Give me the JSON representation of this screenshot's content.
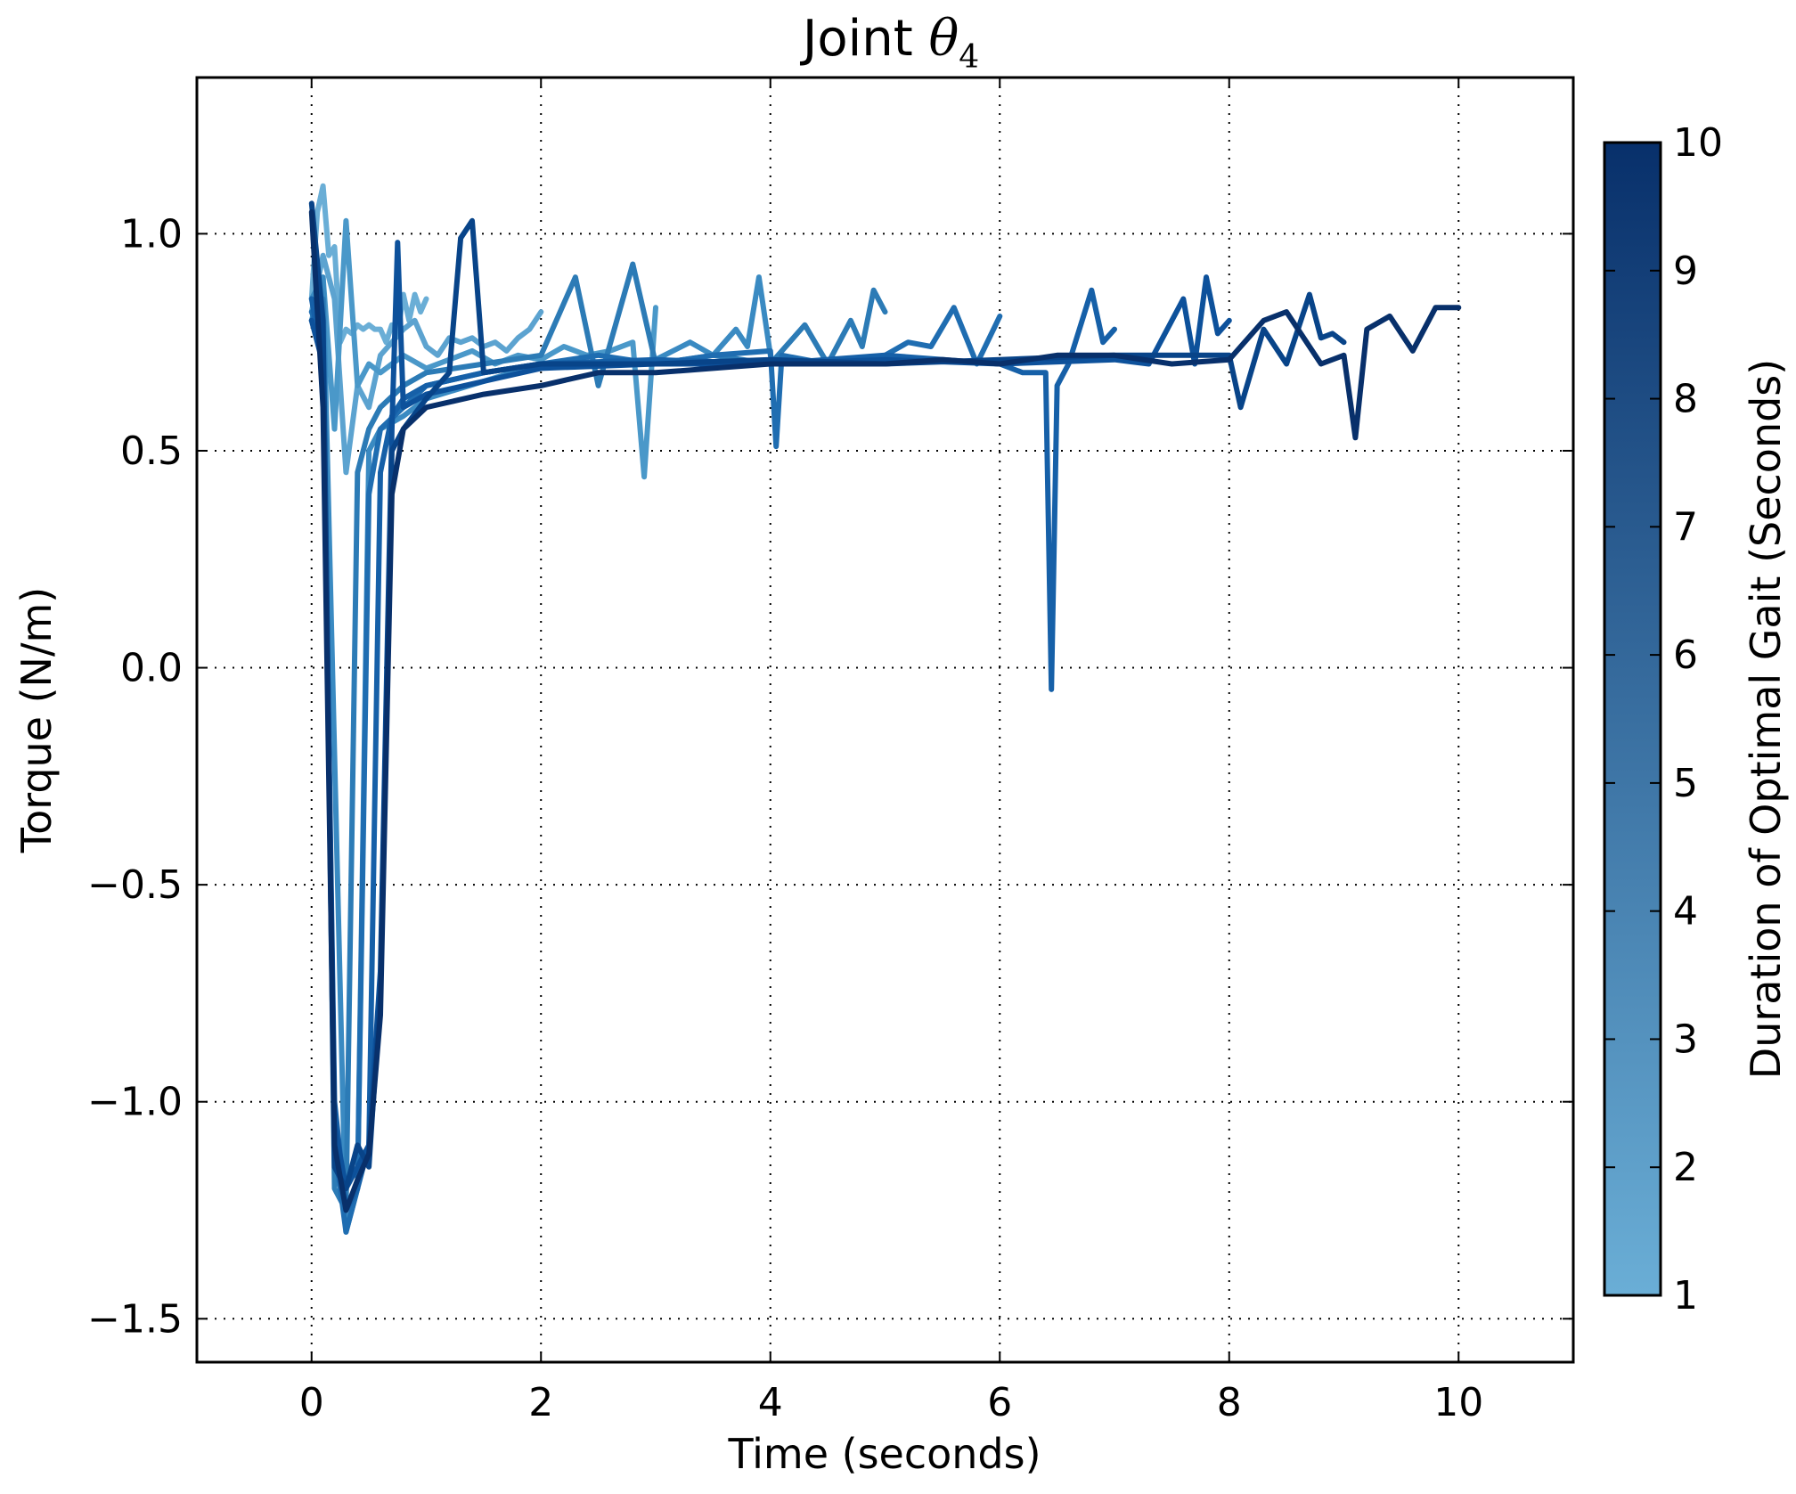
{
  "chart_data": {
    "type": "line",
    "title": "Joint ",
    "title_math": "θ",
    "title_subscript": "4",
    "xlabel": "Time (seconds)",
    "ylabel": "Torque (N/m)",
    "xlim": [
      -1,
      11
    ],
    "ylim": [
      -1.6,
      1.36
    ],
    "xticks": [
      0,
      2,
      4,
      6,
      8,
      10
    ],
    "xtick_labels": [
      "0",
      "2",
      "4",
      "6",
      "8",
      "10"
    ],
    "yticks": [
      -1.5,
      -1.0,
      -0.5,
      0.0,
      0.5,
      1.0
    ],
    "ytick_labels": [
      "−1.5",
      "−1.0",
      "−0.5",
      "0.0",
      "0.5",
      "1.0"
    ],
    "grid": true,
    "grid_style": "dotted",
    "colorbar": {
      "label": "Duration of Optimal Gait (Seconds)",
      "range": [
        1,
        10
      ],
      "ticks": [
        1,
        2,
        3,
        4,
        5,
        6,
        7,
        8,
        9,
        10
      ],
      "tick_labels": [
        "1",
        "2",
        "3",
        "4",
        "5",
        "6",
        "7",
        "8",
        "9",
        "10"
      ],
      "color_low": "#6aaed6",
      "color_high": "#08306b"
    },
    "series": [
      {
        "duration": 1,
        "color": "#6aaed6",
        "x": [
          0,
          0.05,
          0.1,
          0.15,
          0.2,
          0.25,
          0.3,
          0.35,
          0.4,
          0.45,
          0.5,
          0.55,
          0.6,
          0.65,
          0.7,
          0.75,
          0.8,
          0.85,
          0.9,
          0.95,
          1.0
        ],
        "y": [
          0.85,
          1.05,
          1.11,
          0.95,
          0.97,
          0.75,
          0.78,
          0.77,
          0.79,
          0.78,
          0.79,
          0.78,
          0.78,
          0.75,
          0.79,
          0.77,
          0.86,
          0.8,
          0.86,
          0.82,
          0.85
        ]
      },
      {
        "duration": 2,
        "color": "#5ca3d0",
        "x": [
          0,
          0.1,
          0.2,
          0.3,
          0.4,
          0.5,
          0.6,
          0.7,
          0.8,
          0.9,
          1.0,
          1.1,
          1.2,
          1.3,
          1.4,
          1.5,
          1.6,
          1.7,
          1.8,
          1.9,
          2.0
        ],
        "y": [
          0.82,
          0.95,
          0.85,
          0.45,
          0.65,
          0.6,
          0.72,
          0.75,
          0.78,
          0.8,
          0.74,
          0.72,
          0.76,
          0.75,
          0.76,
          0.74,
          0.75,
          0.73,
          0.76,
          0.78,
          0.82
        ]
      },
      {
        "duration": 3,
        "color": "#4a98c9",
        "x": [
          0,
          0.1,
          0.2,
          0.3,
          0.4,
          0.5,
          0.6,
          0.8,
          1.0,
          1.2,
          1.4,
          1.6,
          1.8,
          2.0,
          2.2,
          2.4,
          2.6,
          2.8,
          2.9,
          3.0
        ],
        "y": [
          0.8,
          0.9,
          0.55,
          1.03,
          0.65,
          0.7,
          0.68,
          0.72,
          0.69,
          0.71,
          0.73,
          0.7,
          0.72,
          0.71,
          0.74,
          0.72,
          0.73,
          0.75,
          0.44,
          0.83
        ]
      },
      {
        "duration": 4,
        "color": "#3a8ac2",
        "x": [
          0,
          0.1,
          0.2,
          0.3,
          0.4,
          0.5,
          0.6,
          0.8,
          1.0,
          1.5,
          2.0,
          2.5,
          3.0,
          3.3,
          3.5,
          3.7,
          3.8,
          3.9,
          4.0
        ],
        "y": [
          0.85,
          0.9,
          -0.2,
          -1.3,
          -1.2,
          0.5,
          0.55,
          0.58,
          0.62,
          0.66,
          0.7,
          0.7,
          0.71,
          0.75,
          0.72,
          0.78,
          0.74,
          0.9,
          0.72
        ]
      },
      {
        "duration": 5,
        "color": "#2c7bb6",
        "x": [
          0,
          0.1,
          0.2,
          0.3,
          0.4,
          0.5,
          0.6,
          0.8,
          1.0,
          1.5,
          2.0,
          2.3,
          2.5,
          2.8,
          3.0,
          3.5,
          4.0,
          4.3,
          4.5,
          4.7,
          4.8,
          4.9,
          5.0
        ],
        "y": [
          0.8,
          0.85,
          -1.2,
          -1.25,
          0.45,
          0.55,
          0.6,
          0.65,
          0.68,
          0.7,
          0.72,
          0.9,
          0.65,
          0.93,
          0.7,
          0.72,
          0.7,
          0.79,
          0.7,
          0.8,
          0.74,
          0.87,
          0.82
        ]
      },
      {
        "duration": 6,
        "color": "#1f6db1",
        "x": [
          0,
          0.1,
          0.2,
          0.3,
          0.4,
          0.5,
          0.6,
          0.8,
          1.0,
          1.5,
          2.0,
          2.5,
          3.0,
          3.5,
          4.0,
          4.05,
          4.1,
          4.5,
          5.0,
          5.2,
          5.4,
          5.6,
          5.8,
          6.0
        ],
        "y": [
          0.82,
          0.75,
          -1.1,
          -1.3,
          -1.2,
          0.4,
          0.55,
          0.6,
          0.65,
          0.68,
          0.7,
          0.72,
          0.7,
          0.72,
          0.73,
          0.51,
          0.72,
          0.7,
          0.72,
          0.75,
          0.74,
          0.83,
          0.7,
          0.81
        ]
      },
      {
        "duration": 7,
        "color": "#1660a8",
        "x": [
          0,
          0.1,
          0.2,
          0.3,
          0.4,
          0.5,
          0.6,
          0.7,
          0.8,
          1.0,
          1.5,
          2.0,
          3.0,
          4.0,
          5.0,
          6.0,
          6.2,
          6.4,
          6.45,
          6.5,
          6.6,
          6.8,
          6.9,
          7.0
        ],
        "y": [
          0.85,
          0.7,
          -1.0,
          -1.25,
          -1.2,
          -1.1,
          0.45,
          0.58,
          0.62,
          0.65,
          0.68,
          0.7,
          0.71,
          0.7,
          0.72,
          0.7,
          0.68,
          0.68,
          -0.05,
          0.65,
          0.7,
          0.87,
          0.75,
          0.78
        ]
      },
      {
        "duration": 8,
        "color": "#0d519b",
        "x": [
          0,
          0.1,
          0.2,
          0.3,
          0.4,
          0.5,
          0.6,
          0.7,
          0.75,
          0.8,
          1.0,
          1.5,
          2.0,
          3.0,
          4.0,
          5.0,
          6.0,
          7.0,
          7.3,
          7.6,
          7.7,
          7.8,
          7.9,
          8.0
        ],
        "y": [
          0.8,
          0.7,
          -1.05,
          -1.2,
          -1.15,
          -1.1,
          -0.7,
          0.55,
          0.98,
          0.6,
          0.63,
          0.66,
          0.69,
          0.7,
          0.7,
          0.71,
          0.7,
          0.71,
          0.7,
          0.85,
          0.7,
          0.9,
          0.77,
          0.8
        ]
      },
      {
        "duration": 9,
        "color": "#084489",
        "x": [
          0,
          0.1,
          0.2,
          0.3,
          0.4,
          0.5,
          0.6,
          0.7,
          0.8,
          1.0,
          1.2,
          1.3,
          1.4,
          1.5,
          2.0,
          3.0,
          4.0,
          5.0,
          6.0,
          7.0,
          8.0,
          8.1,
          8.3,
          8.5,
          8.7,
          8.8,
          8.9,
          9.0
        ],
        "y": [
          1.07,
          0.8,
          -1.15,
          -1.2,
          -1.1,
          -1.15,
          -0.75,
          0.5,
          0.55,
          0.62,
          0.68,
          0.99,
          1.03,
          0.68,
          0.7,
          0.7,
          0.71,
          0.7,
          0.71,
          0.72,
          0.72,
          0.6,
          0.78,
          0.7,
          0.86,
          0.76,
          0.77,
          0.75
        ]
      },
      {
        "duration": 10,
        "color": "#08306b",
        "x": [
          0,
          0.1,
          0.2,
          0.3,
          0.4,
          0.5,
          0.6,
          0.7,
          0.8,
          1.0,
          1.5,
          2.0,
          2.5,
          3.0,
          3.5,
          4.0,
          4.5,
          5.0,
          5.5,
          6.0,
          6.5,
          7.0,
          7.5,
          8.0,
          8.3,
          8.5,
          8.8,
          9.0,
          9.1,
          9.2,
          9.4,
          9.6,
          9.8,
          10.0
        ],
        "y": [
          1.05,
          0.6,
          -1.1,
          -1.25,
          -1.18,
          -1.12,
          -0.8,
          0.4,
          0.55,
          0.6,
          0.63,
          0.65,
          0.68,
          0.68,
          0.69,
          0.7,
          0.7,
          0.7,
          0.71,
          0.7,
          0.72,
          0.72,
          0.7,
          0.71,
          0.8,
          0.82,
          0.7,
          0.72,
          0.53,
          0.78,
          0.81,
          0.73,
          0.83,
          0.83
        ]
      }
    ]
  }
}
